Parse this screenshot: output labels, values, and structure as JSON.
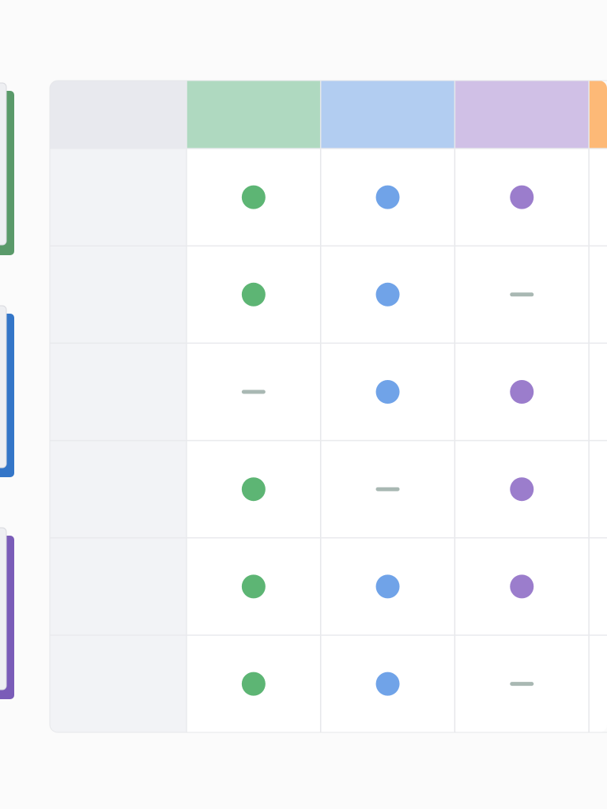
{
  "table": {
    "columns": [
      {
        "header_color": "#afd9c0",
        "dot_color": "#5db574"
      },
      {
        "header_color": "#b2cdf1",
        "dot_color": "#70a3e8"
      },
      {
        "header_color": "#d0c0e6",
        "dot_color": "#9b7dcc"
      },
      {
        "header_color": "#fdb977",
        "dot_color": "#f59b45"
      }
    ],
    "rows": [
      [
        true,
        true,
        true
      ],
      [
        true,
        true,
        false
      ],
      [
        false,
        true,
        true
      ],
      [
        true,
        false,
        true
      ],
      [
        true,
        true,
        true
      ],
      [
        true,
        true,
        false
      ]
    ]
  }
}
